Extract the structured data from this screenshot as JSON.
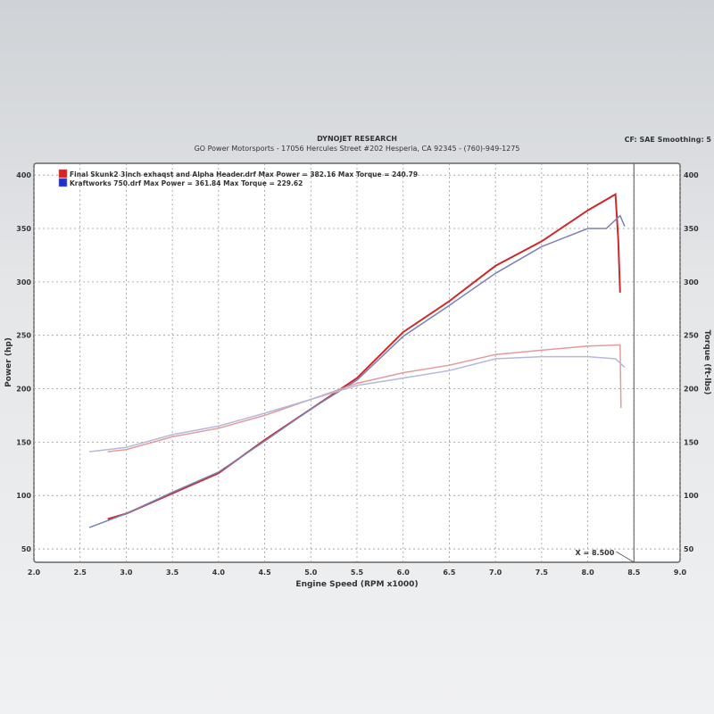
{
  "header": {
    "title": "DYNOJET RESEARCH",
    "subtitle": "GO Power Motorsports - 17056 Hercules Street #202 Hesperia, CA 92345 - (760)-949-1275",
    "settings": "CF: SAE  Smoothing: 5"
  },
  "chart_data": {
    "type": "line",
    "xlabel": "Engine Speed (RPM x1000)",
    "ylabel": "Power (hp)",
    "y2label": "Torque (ft-lbs)",
    "xlim": [
      2.0,
      9.0
    ],
    "ylim": [
      37.5,
      411
    ],
    "xticks": [
      "2.0",
      "2.5",
      "3.0",
      "3.5",
      "4.0",
      "4.5",
      "5.0",
      "5.5",
      "6.0",
      "6.5",
      "7.0",
      "7.5",
      "8.0",
      "8.5",
      "9.0"
    ],
    "yticks": [
      "50",
      "100",
      "150",
      "200",
      "250",
      "300",
      "350",
      "400"
    ],
    "grid": true,
    "legend_placement": "top-left",
    "cursor": {
      "x": 8.5,
      "label": "X = 8.500"
    },
    "legend": [
      {
        "text": "Final Skunk2 3inch exhaqst and Alpha Header.drf Max Power = 382.16 Max Torque = 240.79",
        "color": "#e02020"
      },
      {
        "text": "Kraftworks 750.drf Max Power = 361.84 Max Torque = 229.62",
        "color": "#2030d0"
      }
    ],
    "series": [
      {
        "name": "Final Skunk2 3inch exhaqst and Alpha Header.drf",
        "quantity": "power",
        "color": "#cc2a2a",
        "x": [
          2.8,
          3.0,
          3.5,
          4.0,
          4.5,
          5.0,
          5.5,
          6.0,
          6.5,
          7.0,
          7.5,
          8.0,
          8.3,
          8.33,
          8.35
        ],
        "y": [
          78,
          83,
          102,
          121,
          152,
          181,
          210,
          253,
          282,
          315,
          338,
          367,
          382,
          340,
          290
        ]
      },
      {
        "name": "Kraftworks 750.drf",
        "quantity": "power",
        "color": "#7a7fb8",
        "x": [
          2.6,
          3.0,
          3.5,
          4.0,
          4.5,
          5.0,
          5.5,
          6.0,
          6.5,
          7.0,
          7.5,
          8.0,
          8.2,
          8.35,
          8.4
        ],
        "y": [
          70,
          83,
          103,
          122,
          151,
          181,
          208,
          249,
          278,
          308,
          333,
          350,
          350,
          362,
          352
        ]
      },
      {
        "name": "Final Skunk2 3inch exhaqst and Alpha Header.drf",
        "quantity": "torque",
        "color": "#e49a9a",
        "x": [
          2.8,
          3.0,
          3.5,
          4.0,
          4.5,
          5.0,
          5.5,
          6.0,
          6.5,
          7.0,
          7.5,
          8.0,
          8.35,
          8.36
        ],
        "y": [
          141,
          143,
          155,
          163,
          175,
          190,
          205,
          215,
          222,
          232,
          236,
          240,
          241,
          182
        ]
      },
      {
        "name": "Kraftworks 750.drf",
        "quantity": "torque",
        "color": "#b4b8dc",
        "x": [
          2.6,
          3.0,
          3.5,
          4.0,
          4.5,
          5.0,
          5.5,
          6.0,
          6.5,
          7.0,
          7.5,
          8.0,
          8.3,
          8.4
        ],
        "y": [
          141,
          145,
          157,
          165,
          177,
          190,
          203,
          210,
          217,
          228,
          230,
          230,
          228,
          220
        ]
      }
    ]
  }
}
